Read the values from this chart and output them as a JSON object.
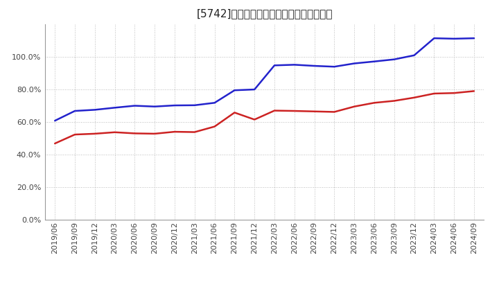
{
  "title": "[5742]　固定比率、固定長期適合率の推移",
  "ylim": [
    0.0,
    1.2
  ],
  "yticks": [
    0.0,
    0.2,
    0.4,
    0.6,
    0.8,
    1.0
  ],
  "background_color": "#ffffff",
  "plot_bg_color": "#ffffff",
  "grid_color": "#bbbbbb",
  "series": [
    {
      "name": "固定比率",
      "color": "#2222cc",
      "data": [
        [
          "2019/06",
          0.608
        ],
        [
          "2019/09",
          0.668
        ],
        [
          "2019/12",
          0.675
        ],
        [
          "2020/03",
          0.688
        ],
        [
          "2020/06",
          0.7
        ],
        [
          "2020/09",
          0.695
        ],
        [
          "2020/12",
          0.702
        ],
        [
          "2021/03",
          0.703
        ],
        [
          "2021/06",
          0.718
        ],
        [
          "2021/09",
          0.795
        ],
        [
          "2021/12",
          0.8
        ],
        [
          "2022/03",
          0.948
        ],
        [
          "2022/06",
          0.952
        ],
        [
          "2022/09",
          0.945
        ],
        [
          "2022/12",
          0.94
        ],
        [
          "2023/03",
          0.96
        ],
        [
          "2023/06",
          0.972
        ],
        [
          "2023/09",
          0.985
        ],
        [
          "2023/12",
          1.01
        ],
        [
          "2024/03",
          1.115
        ],
        [
          "2024/06",
          1.112
        ],
        [
          "2024/09",
          1.115
        ]
      ]
    },
    {
      "name": "固定長期適合率",
      "color": "#cc2222",
      "data": [
        [
          "2019/06",
          0.468
        ],
        [
          "2019/09",
          0.523
        ],
        [
          "2019/12",
          0.528
        ],
        [
          "2020/03",
          0.537
        ],
        [
          "2020/06",
          0.53
        ],
        [
          "2020/09",
          0.528
        ],
        [
          "2020/12",
          0.54
        ],
        [
          "2021/03",
          0.538
        ],
        [
          "2021/06",
          0.572
        ],
        [
          "2021/09",
          0.658
        ],
        [
          "2021/12",
          0.615
        ],
        [
          "2022/03",
          0.67
        ],
        [
          "2022/06",
          0.668
        ],
        [
          "2022/09",
          0.665
        ],
        [
          "2022/12",
          0.662
        ],
        [
          "2023/03",
          0.695
        ],
        [
          "2023/06",
          0.718
        ],
        [
          "2023/09",
          0.73
        ],
        [
          "2023/12",
          0.75
        ],
        [
          "2024/03",
          0.775
        ],
        [
          "2024/06",
          0.778
        ],
        [
          "2024/09",
          0.79
        ]
      ]
    }
  ],
  "xtick_labels": [
    "2019/06",
    "2019/09",
    "2019/12",
    "2020/03",
    "2020/06",
    "2020/09",
    "2020/12",
    "2021/03",
    "2021/06",
    "2021/09",
    "2021/12",
    "2022/03",
    "2022/06",
    "2022/09",
    "2022/12",
    "2023/03",
    "2023/06",
    "2023/09",
    "2023/12",
    "2024/03",
    "2024/06",
    "2024/09"
  ],
  "legend_labels": [
    "固定比率",
    "固定長期適合率"
  ],
  "legend_colors": [
    "#2222cc",
    "#cc2222"
  ],
  "title_fontsize": 11,
  "tick_fontsize": 8,
  "legend_fontsize": 9
}
